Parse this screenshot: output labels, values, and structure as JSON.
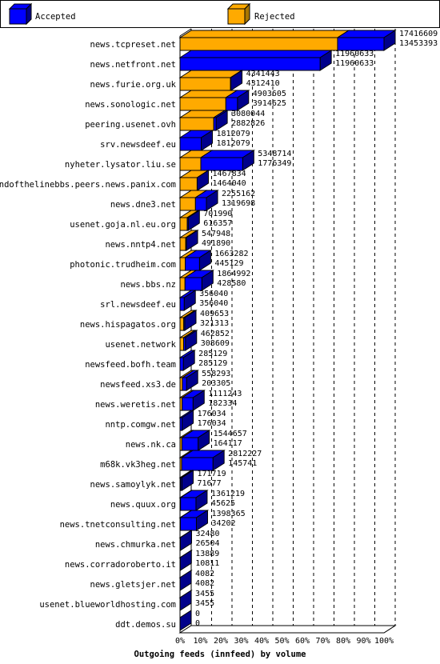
{
  "chart_data": {
    "type": "bar",
    "orientation": "horizontal",
    "stacking": "overlapped-3d",
    "xlabel": "Outgoing feeds (innfeed) by volume",
    "xlim": [
      0,
      100
    ],
    "x_unit": "%",
    "x_ticks": [
      "0%",
      "10%",
      "20%",
      "30%",
      "40%",
      "50%",
      "60%",
      "70%",
      "80%",
      "90%",
      "100%"
    ],
    "grid": "vertical-dashed",
    "legend_position": "top",
    "colors": {
      "accepted": "#0000ff",
      "rejected": "#ffaa00",
      "accepted_side": "#00008b",
      "rejected_side": "#aa7700"
    },
    "series": [
      {
        "name": "Accepted",
        "key": "accepted"
      },
      {
        "name": "Rejected",
        "key": "rejected"
      }
    ],
    "rows": [
      {
        "label": "news.tcpreset.net",
        "accepted": "17416609",
        "rejected": "13453393",
        "v1": 17416609,
        "v2": 13453393
      },
      {
        "label": "news.netfront.net",
        "accepted": "11960633",
        "rejected": "11960633",
        "v1": 11960633,
        "v2": 11960633
      },
      {
        "label": "news.furie.org.uk",
        "accepted": "4341443",
        "rejected": "4312410",
        "v1": 4341443,
        "v2": 4312410
      },
      {
        "label": "news.sonologic.net",
        "accepted": "4903605",
        "rejected": "3914625",
        "v1": 4903605,
        "v2": 3914625
      },
      {
        "label": "peering.usenet.ovh",
        "accepted": "3080044",
        "rejected": "2882826",
        "v1": 3080044,
        "v2": 2882826
      },
      {
        "label": "srv.newsdeef.eu",
        "accepted": "1812079",
        "rejected": "1812079",
        "v1": 1812079,
        "v2": 1812079
      },
      {
        "label": "nyheter.lysator.liu.se",
        "accepted": "5348714",
        "rejected": "1776349",
        "v1": 5348714,
        "v2": 1776349
      },
      {
        "label": "endofthelinebbs.peers.news.panix.com",
        "accepted": "1467834",
        "rejected": "1464040",
        "v1": 1467834,
        "v2": 1464040
      },
      {
        "label": "news.dne3.net",
        "accepted": "2255162",
        "rejected": "1319698",
        "v1": 2255162,
        "v2": 1319698
      },
      {
        "label": "usenet.goja.nl.eu.org",
        "accepted": "701990",
        "rejected": "616357",
        "v1": 701990,
        "v2": 616357
      },
      {
        "label": "news.nntp4.net",
        "accepted": "547948",
        "rejected": "491890",
        "v1": 547948,
        "v2": 491890
      },
      {
        "label": "photonic.trudheim.com",
        "accepted": "1663282",
        "rejected": "445129",
        "v1": 1663282,
        "v2": 445129
      },
      {
        "label": "news.bbs.nz",
        "accepted": "1864992",
        "rejected": "428580",
        "v1": 1864992,
        "v2": 428580
      },
      {
        "label": "srl.newsdeef.eu",
        "accepted": "356040",
        "rejected": "356040",
        "v1": 356040,
        "v2": 356040
      },
      {
        "label": "news.hispagatos.org",
        "accepted": "409653",
        "rejected": "321313",
        "v1": 409653,
        "v2": 321313
      },
      {
        "label": "usenet.network",
        "accepted": "462852",
        "rejected": "308609",
        "v1": 462852,
        "v2": 308609
      },
      {
        "label": "newsfeed.bofh.team",
        "accepted": "285129",
        "rejected": "285129",
        "v1": 285129,
        "v2": 285129
      },
      {
        "label": "newsfeed.xs3.de",
        "accepted": "558293",
        "rejected": "203305",
        "v1": 558293,
        "v2": 203305
      },
      {
        "label": "news.weretis.net",
        "accepted": "1111243",
        "rejected": "182334",
        "v1": 1111243,
        "v2": 182334
      },
      {
        "label": "nntp.comgw.net",
        "accepted": "176034",
        "rejected": "176034",
        "v1": 176034,
        "v2": 176034
      },
      {
        "label": "news.nk.ca",
        "accepted": "1544657",
        "rejected": "164117",
        "v1": 1544657,
        "v2": 164117
      },
      {
        "label": "m68k.vk3heg.net",
        "accepted": "2812227",
        "rejected": "145741",
        "v1": 2812227,
        "v2": 145741
      },
      {
        "label": "news.samoylyk.net",
        "accepted": "171719",
        "rejected": "71677",
        "v1": 171719,
        "v2": 71677
      },
      {
        "label": "news.quux.org",
        "accepted": "1361219",
        "rejected": "45625",
        "v1": 1361219,
        "v2": 45625
      },
      {
        "label": "news.tnetconsulting.net",
        "accepted": "1398365",
        "rejected": "34202",
        "v1": 1398365,
        "v2": 34202
      },
      {
        "label": "news.chmurka.net",
        "accepted": "32480",
        "rejected": "26504",
        "v1": 32480,
        "v2": 26504
      },
      {
        "label": "news.corradoroberto.it",
        "accepted": "13889",
        "rejected": "10811",
        "v1": 13889,
        "v2": 10811
      },
      {
        "label": "news.gletsjer.net",
        "accepted": "4082",
        "rejected": "4082",
        "v1": 4082,
        "v2": 4082
      },
      {
        "label": "usenet.blueworldhosting.com",
        "accepted": "3455",
        "rejected": "3455",
        "v1": 3455,
        "v2": 3455
      },
      {
        "label": "ddt.demos.su",
        "accepted": "0",
        "rejected": "0",
        "v1": 0,
        "v2": 0
      }
    ]
  }
}
